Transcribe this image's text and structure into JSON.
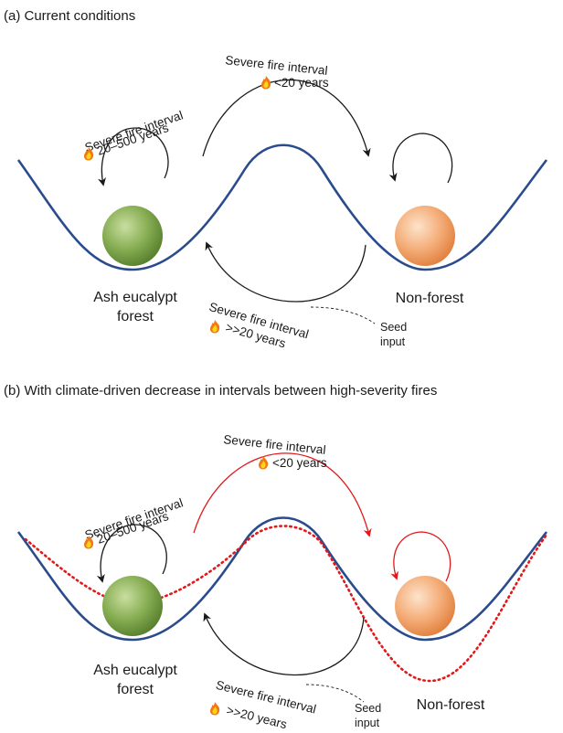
{
  "panel_a": {
    "title": "(a) Current conditions",
    "interval_label": "Severe fire interval",
    "arc_top": "<20 years",
    "arc_left": "20–500 years",
    "arc_bottom": ">>20 years",
    "state_left_line1": "Ash eucalypt",
    "state_left_line2": "forest",
    "state_right": "Non-forest",
    "seed_line1": "Seed",
    "seed_line2": "input"
  },
  "panel_b": {
    "title": "(b) With climate-driven decrease in intervals between high-severity fires",
    "interval_label": "Severe fire interval",
    "arc_top": "<20 years",
    "arc_left": "20–500 years",
    "arc_bottom": ">>20 years",
    "state_left_line1": "Ash eucalypt",
    "state_left_line2": "forest",
    "state_right": "Non-forest",
    "seed_line1": "Seed",
    "seed_line2": "input"
  },
  "colors": {
    "landscape_line": "#2b4c8c",
    "future_landscape_line": "#e0191b",
    "forest_ball": "#6e9a3e",
    "non_forest_ball": "#f2a46c",
    "accent_red": "#e0191b"
  },
  "icons": [
    "flame-icon"
  ]
}
